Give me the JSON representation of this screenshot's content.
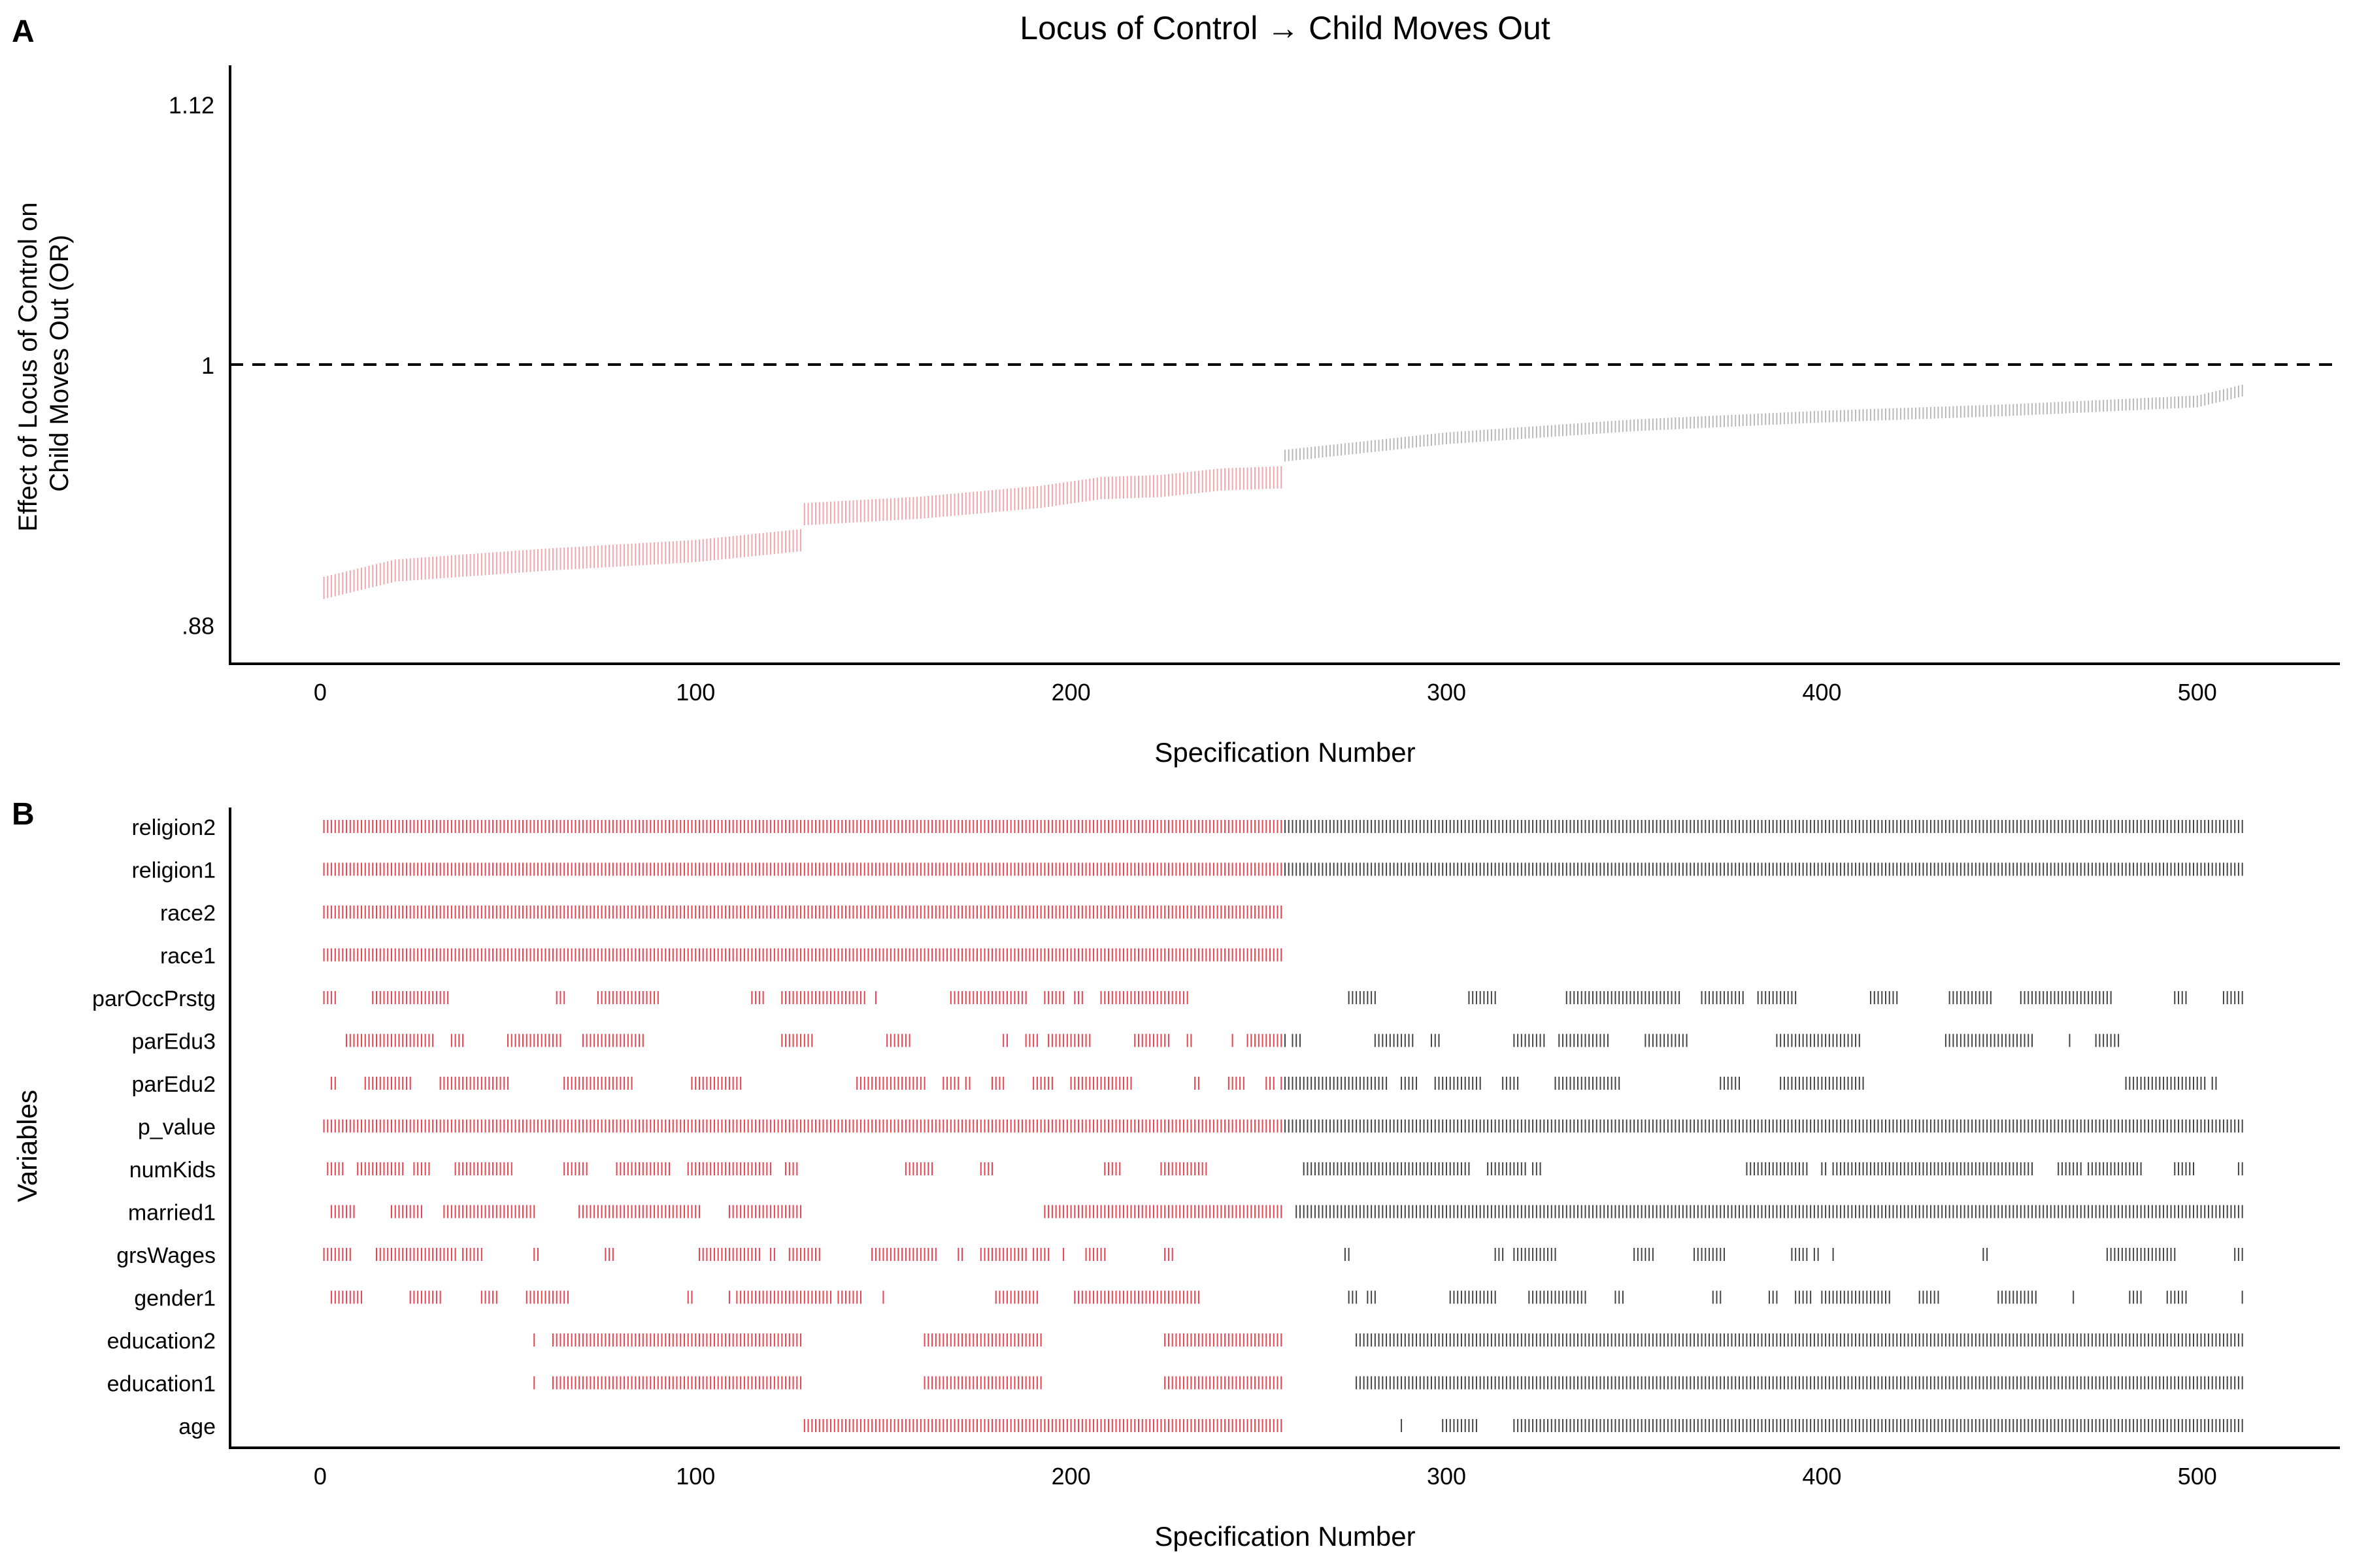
{
  "colors": {
    "significant": "#e8434f",
    "nonsignificant": "#444444",
    "ci_significant": "#f2a5aa",
    "ci_nonsignificant": "#b8b8b8",
    "axis": "#000000"
  },
  "chart_data": [
    {
      "type": "scatter",
      "panel_label": "A",
      "title": "Locus of Control → Child Moves Out",
      "xlabel": "Specification Number",
      "ylabel_lines": [
        "Effect of Locus of Control on",
        "Child Moves Out (OR)"
      ],
      "xlim": [
        -24,
        538
      ],
      "ylim": [
        0.862,
        1.138
      ],
      "xticks": [
        0,
        100,
        200,
        300,
        400,
        500
      ],
      "xtick_labels": [
        "0",
        "100",
        "200",
        "300",
        "400",
        "500"
      ],
      "yticks": [
        0.88,
        1,
        1.12
      ],
      "ytick_labels": [
        ".88",
        "1",
        "1.12"
      ],
      "reference_line": 1,
      "grid": false,
      "n_specifications": 512,
      "significant_count": 256,
      "estimate_profile": [
        {
          "spec": 1,
          "or": 0.897
        },
        {
          "spec": 20,
          "or": 0.905
        },
        {
          "spec": 60,
          "or": 0.91
        },
        {
          "spec": 100,
          "or": 0.914
        },
        {
          "spec": 128,
          "or": 0.919
        },
        {
          "spec": 129,
          "or": 0.931
        },
        {
          "spec": 160,
          "or": 0.934
        },
        {
          "spec": 192,
          "or": 0.939
        },
        {
          "spec": 208,
          "or": 0.943
        },
        {
          "spec": 224,
          "or": 0.944
        },
        {
          "spec": 240,
          "or": 0.947
        },
        {
          "spec": 256,
          "or": 0.948
        },
        {
          "spec": 257,
          "or": 0.958
        },
        {
          "spec": 300,
          "or": 0.966
        },
        {
          "spec": 350,
          "or": 0.972
        },
        {
          "spec": 400,
          "or": 0.976
        },
        {
          "spec": 450,
          "or": 0.979
        },
        {
          "spec": 500,
          "or": 0.983
        },
        {
          "spec": 512,
          "or": 0.988
        }
      ]
    },
    {
      "type": "scatter",
      "panel_label": "B",
      "xlabel": "Specification Number",
      "ylabel": "Variables",
      "xlim": [
        -24,
        538
      ],
      "xticks": [
        0,
        100,
        200,
        300,
        400,
        500
      ],
      "xtick_labels": [
        "0",
        "100",
        "200",
        "300",
        "400",
        "500"
      ],
      "grid": false,
      "variables": [
        "religion2",
        "religion1",
        "race2",
        "race1",
        "parOccPrstg",
        "parEdu3",
        "parEdu2",
        "p_value",
        "numKids",
        "married1",
        "grsWages",
        "gender1",
        "education2",
        "education1",
        "age"
      ],
      "segments": {
        "religion2": [
          [
            1,
            512
          ]
        ],
        "religion1": [
          [
            1,
            512
          ]
        ],
        "race2": [
          [
            1,
            256
          ]
        ],
        "race1": [
          [
            1,
            256
          ]
        ],
        "p_value": [
          [
            1,
            512
          ]
        ],
        "education2": [
          [
            57,
            57
          ],
          [
            62,
            128
          ],
          [
            161,
            192
          ],
          [
            225,
            256
          ],
          [
            276,
            512
          ]
        ],
        "education1": [
          [
            57,
            57
          ],
          [
            62,
            128
          ],
          [
            161,
            192
          ],
          [
            225,
            256
          ],
          [
            276,
            512
          ]
        ],
        "married1": [
          [
            3,
            9
          ],
          [
            19,
            27
          ],
          [
            33,
            57
          ],
          [
            69,
            101
          ],
          [
            109,
            128
          ],
          [
            193,
            256
          ],
          [
            260,
            512
          ]
        ],
        "age": [
          [
            129,
            256
          ],
          [
            288,
            288
          ],
          [
            299,
            308
          ],
          [
            318,
            512
          ]
        ]
      },
      "density": {
        "parOccPrstg": 0.45,
        "parEdu3": 0.5,
        "parEdu2": 0.5,
        "numKids": 0.6,
        "grsWages": 0.45,
        "gender1": 0.45
      }
    }
  ]
}
